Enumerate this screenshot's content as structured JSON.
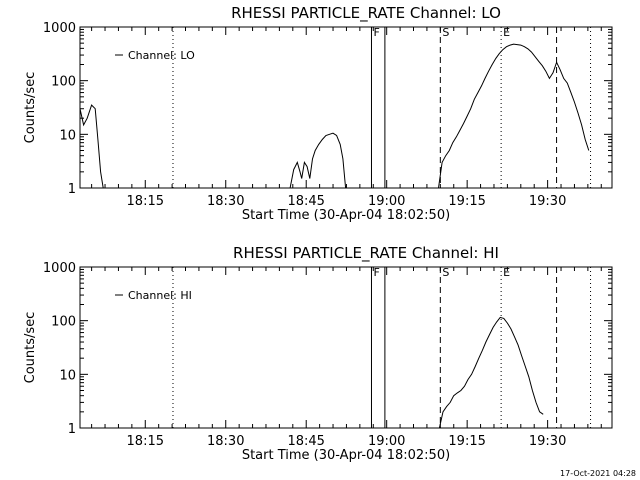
{
  "footer": {
    "timestamp": "17-Oct-2021 04:28"
  },
  "chart_data": [
    {
      "type": "line",
      "title": "RHESSI PARTICLE_RATE Channel: LO",
      "xlabel": "Start Time (30-Apr-04 18:02:50)",
      "ylabel": "Counts/sec",
      "yscale": "log",
      "xlim": [
        "18:02:50",
        "19:42:00"
      ],
      "ylim": [
        1,
        1000
      ],
      "xticks": [
        "18:15",
        "18:30",
        "18:45",
        "19:00",
        "19:15",
        "19:30"
      ],
      "yticks": [
        "1",
        "10",
        "100",
        "1000"
      ],
      "legend": {
        "entries": [
          "Channel: LO"
        ],
        "position": "top-left"
      },
      "markers": [
        {
          "label": "F",
          "time": "18:57:10",
          "style": "solid"
        },
        {
          "label": "",
          "time": "18:59:40",
          "style": "solid"
        },
        {
          "label": "S",
          "time": "19:10:00",
          "style": "dashed"
        },
        {
          "label": "E",
          "time": "19:21:20",
          "style": "dotted"
        },
        {
          "label": "",
          "time": "18:20:10",
          "style": "dotted"
        },
        {
          "label": "",
          "time": "19:31:40",
          "style": "dashed"
        },
        {
          "label": "",
          "time": "19:38:00",
          "style": "dotted"
        }
      ],
      "series": [
        {
          "name": "Channel: LO",
          "segments": [
            {
              "x": [
                "18:02:50",
                "18:03:30",
                "18:04:10",
                "18:05:00",
                "18:05:40",
                "18:06:10",
                "18:06:40",
                "18:07:10"
              ],
              "y": [
                30,
                15,
                20,
                35,
                30,
                8,
                2,
                1
              ]
            },
            {
              "x": [
                "18:42:00",
                "18:42:40",
                "18:43:20",
                "18:43:50",
                "18:44:10",
                "18:44:40",
                "18:45:10",
                "18:45:40",
                "18:46:10",
                "18:46:40",
                "18:47:20",
                "18:48:00",
                "18:48:40",
                "18:49:20",
                "18:50:00",
                "18:50:40",
                "18:51:20",
                "18:51:50",
                "18:52:20"
              ],
              "y": [
                1,
                2.2,
                3,
                2,
                1.5,
                3,
                2.5,
                1.5,
                3.5,
                5,
                6.5,
                8,
                9.5,
                10,
                10.5,
                9.5,
                6.5,
                3.5,
                1
              ]
            },
            {
              "x": [
                "19:09:40",
                "19:10:20",
                "19:11:00",
                "19:11:40",
                "19:12:20",
                "19:13:00",
                "19:13:40",
                "19:14:20",
                "19:15:00",
                "19:15:40",
                "19:16:20",
                "19:17:00",
                "19:17:40",
                "19:18:20",
                "19:19:00",
                "19:19:40",
                "19:20:20",
                "19:21:00",
                "19:21:40",
                "19:22:20",
                "19:23:00",
                "19:23:40",
                "19:24:20",
                "19:25:00",
                "19:25:40",
                "19:26:20",
                "19:27:00",
                "19:27:40",
                "19:28:20",
                "19:29:00",
                "19:29:40",
                "19:30:20",
                "19:31:00",
                "19:31:40",
                "19:32:20",
                "19:33:00",
                "19:33:40",
                "19:34:20",
                "19:35:00",
                "19:35:40",
                "19:36:20",
                "19:37:00",
                "19:37:40"
              ],
              "y": [
                1,
                3,
                4,
                5,
                7,
                9,
                12,
                16,
                22,
                30,
                45,
                60,
                80,
                110,
                150,
                200,
                260,
                320,
                380,
                430,
                460,
                480,
                470,
                460,
                430,
                390,
                340,
                280,
                230,
                190,
                150,
                110,
                140,
                220,
                160,
                110,
                90,
                60,
                40,
                25,
                15,
                8,
                5
              ]
            }
          ]
        }
      ]
    },
    {
      "type": "line",
      "title": "RHESSI PARTICLE_RATE Channel: HI",
      "xlabel": "Start Time (30-Apr-04 18:02:50)",
      "ylabel": "Counts/sec",
      "yscale": "log",
      "xlim": [
        "18:02:50",
        "19:42:00"
      ],
      "ylim": [
        1,
        1000
      ],
      "xticks": [
        "18:15",
        "18:30",
        "18:45",
        "19:00",
        "19:15",
        "19:30"
      ],
      "yticks": [
        "1",
        "10",
        "100",
        "1000"
      ],
      "legend": {
        "entries": [
          "Channel: HI"
        ],
        "position": "top-left"
      },
      "markers": [
        {
          "label": "F",
          "time": "18:57:10",
          "style": "solid"
        },
        {
          "label": "",
          "time": "18:59:40",
          "style": "solid"
        },
        {
          "label": "S",
          "time": "19:10:00",
          "style": "dashed"
        },
        {
          "label": "E",
          "time": "19:21:20",
          "style": "dotted"
        },
        {
          "label": "",
          "time": "18:20:10",
          "style": "dotted"
        },
        {
          "label": "",
          "time": "19:31:40",
          "style": "dashed"
        },
        {
          "label": "",
          "time": "19:38:00",
          "style": "dotted"
        }
      ],
      "series": [
        {
          "name": "Channel: HI",
          "segments": [
            {
              "x": [
                "19:09:50",
                "19:10:30",
                "19:11:10",
                "19:11:50",
                "19:12:30",
                "19:13:10",
                "19:13:50",
                "19:14:30",
                "19:15:10",
                "19:15:50",
                "19:16:30",
                "19:17:10",
                "19:17:50",
                "19:18:30",
                "19:19:10",
                "19:19:50",
                "19:20:30",
                "19:21:10",
                "19:21:50",
                "19:22:30",
                "19:23:10",
                "19:23:50",
                "19:24:30",
                "19:25:10",
                "19:25:50",
                "19:26:30",
                "19:27:10",
                "19:27:50",
                "19:28:30",
                "19:29:10"
              ],
              "y": [
                1,
                2,
                2.5,
                3,
                4,
                4.5,
                5,
                6,
                8,
                10,
                14,
                20,
                28,
                40,
                55,
                75,
                95,
                115,
                110,
                90,
                70,
                50,
                35,
                22,
                14,
                9,
                5,
                3,
                2,
                1.8
              ]
            }
          ]
        }
      ]
    }
  ]
}
